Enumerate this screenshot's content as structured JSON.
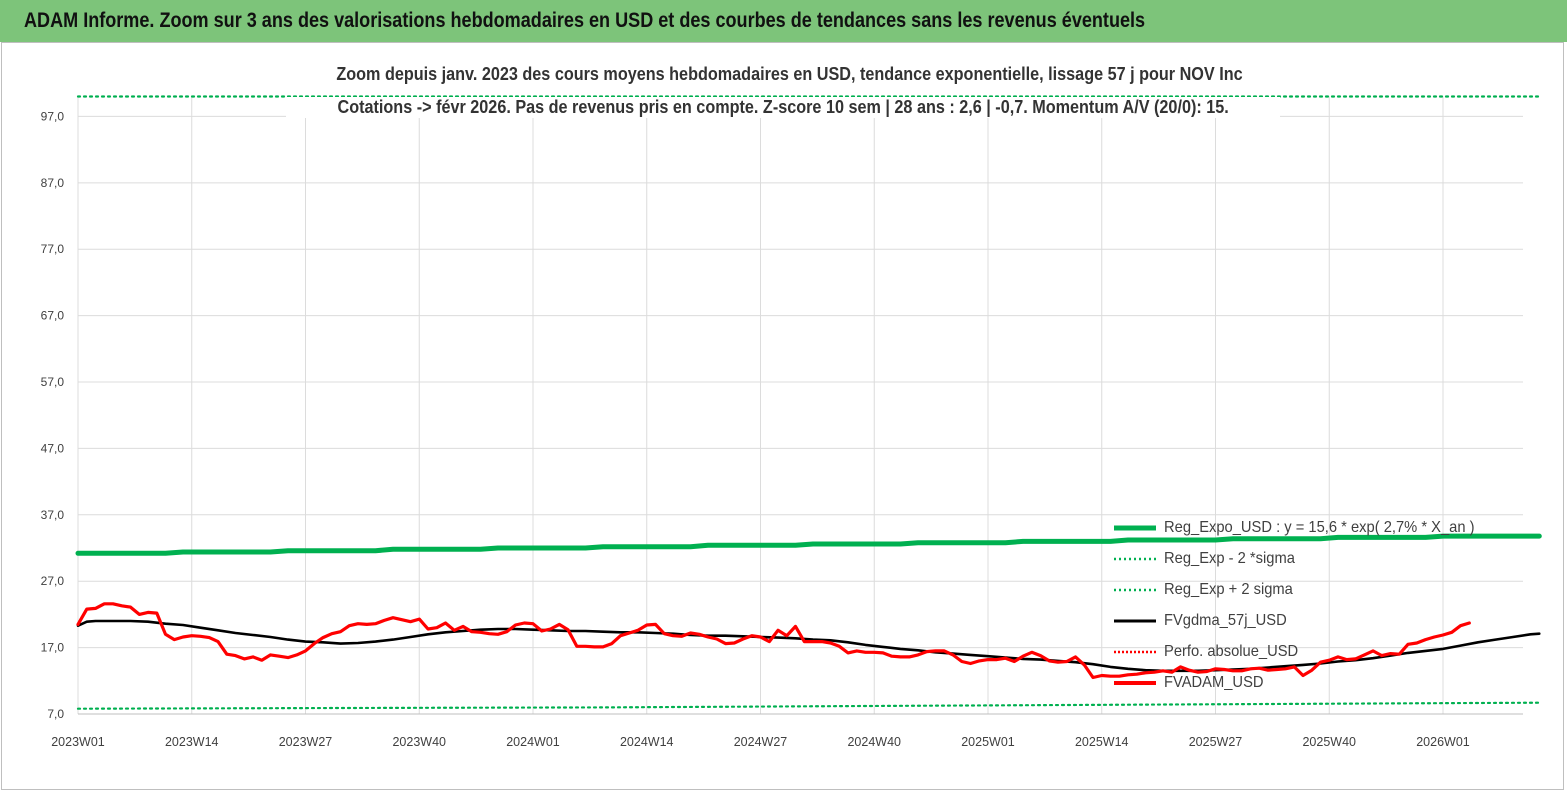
{
  "page": {
    "title": "ADAM Informe. Zoom sur 3 ans des valorisations hebdomadaires en USD et des courbes de tendances sans les revenus éventuels"
  },
  "chart_data": {
    "type": "line",
    "subtitle_line1": "Zoom depuis janv. 2023 des cours moyens hebdomadaires en USD, tendance exponentielle, lissage 57 j pour NOV Inc",
    "subtitle_line2": "Cotations -> févr 2026.  Pas de revenus pris en compte. Z-score 10 sem | 28 ans : 2,6 | -0,7. Momentum A/V (20/0): 15.",
    "ylim": [
      7.0,
      100.0
    ],
    "y_ticks": [
      "7,0",
      "17,0",
      "27,0",
      "37,0",
      "47,0",
      "57,0",
      "67,0",
      "77,0",
      "87,0",
      "97,0"
    ],
    "x_ticks": [
      "2023W01",
      "2023W14",
      "2023W27",
      "2023W40",
      "2024W01",
      "2024W14",
      "2024W27",
      "2024W40",
      "2025W01",
      "2025W14",
      "2025W27",
      "2025W40",
      "2026W01"
    ],
    "x_range_weeks": [
      0,
      167
    ],
    "grid": true,
    "legend_position": "bottom-right",
    "series": [
      {
        "name": "Reg_Expo_USD : y = 15,6 * exp( 2,7% *  X_an )",
        "color": "#00b050",
        "style": "solid-thick",
        "points": [
          [
            0,
            31.2
          ],
          [
            10,
            31.2
          ],
          [
            12,
            31.4
          ],
          [
            22,
            31.4
          ],
          [
            24,
            31.6
          ],
          [
            34,
            31.6
          ],
          [
            36,
            31.8
          ],
          [
            46,
            31.8
          ],
          [
            48,
            32.0
          ],
          [
            58,
            32.0
          ],
          [
            60,
            32.2
          ],
          [
            70,
            32.2
          ],
          [
            72,
            32.4
          ],
          [
            82,
            32.4
          ],
          [
            84,
            32.6
          ],
          [
            94,
            32.6
          ],
          [
            96,
            32.8
          ],
          [
            106,
            32.8
          ],
          [
            108,
            33.0
          ],
          [
            118,
            33.0
          ],
          [
            120,
            33.2
          ],
          [
            130,
            33.2
          ],
          [
            132,
            33.4
          ],
          [
            142,
            33.4
          ],
          [
            144,
            33.6
          ],
          [
            154,
            33.6
          ],
          [
            156,
            33.8
          ],
          [
            167,
            33.8
          ]
        ]
      },
      {
        "name": "Reg_Exp - 2 *sigma",
        "color": "#00b050",
        "style": "dotted",
        "points": [
          [
            0,
            7.8
          ],
          [
            30,
            7.9
          ],
          [
            60,
            8.0
          ],
          [
            90,
            8.2
          ],
          [
            120,
            8.4
          ],
          [
            150,
            8.6
          ],
          [
            167,
            8.7
          ]
        ]
      },
      {
        "name": "Reg_Exp + 2 sigma",
        "color": "#00b050",
        "style": "dotted",
        "points": [
          [
            0,
            100.0
          ],
          [
            167,
            100.0
          ]
        ]
      },
      {
        "name": "FVgdma_57j_USD",
        "color": "#000000",
        "style": "solid",
        "points": [
          [
            0,
            20.3
          ],
          [
            1,
            20.9
          ],
          [
            2,
            21.0
          ],
          [
            4,
            21.0
          ],
          [
            6,
            21.0
          ],
          [
            8,
            20.9
          ],
          [
            10,
            20.6
          ],
          [
            12,
            20.4
          ],
          [
            14,
            20.0
          ],
          [
            16,
            19.6
          ],
          [
            18,
            19.2
          ],
          [
            20,
            18.9
          ],
          [
            22,
            18.6
          ],
          [
            24,
            18.2
          ],
          [
            26,
            17.9
          ],
          [
            28,
            17.8
          ],
          [
            30,
            17.6
          ],
          [
            32,
            17.7
          ],
          [
            34,
            17.9
          ],
          [
            36,
            18.2
          ],
          [
            38,
            18.6
          ],
          [
            40,
            19.0
          ],
          [
            42,
            19.3
          ],
          [
            44,
            19.5
          ],
          [
            46,
            19.7
          ],
          [
            48,
            19.8
          ],
          [
            50,
            19.8
          ],
          [
            52,
            19.7
          ],
          [
            54,
            19.6
          ],
          [
            56,
            19.5
          ],
          [
            58,
            19.5
          ],
          [
            60,
            19.4
          ],
          [
            62,
            19.3
          ],
          [
            64,
            19.3
          ],
          [
            66,
            19.2
          ],
          [
            68,
            19.1
          ],
          [
            70,
            18.9
          ],
          [
            72,
            18.8
          ],
          [
            74,
            18.8
          ],
          [
            76,
            18.7
          ],
          [
            78,
            18.6
          ],
          [
            80,
            18.5
          ],
          [
            82,
            18.4
          ],
          [
            84,
            18.2
          ],
          [
            86,
            18.1
          ],
          [
            88,
            17.8
          ],
          [
            90,
            17.4
          ],
          [
            92,
            17.1
          ],
          [
            94,
            16.8
          ],
          [
            96,
            16.6
          ],
          [
            98,
            16.3
          ],
          [
            100,
            16.1
          ],
          [
            102,
            15.9
          ],
          [
            104,
            15.7
          ],
          [
            106,
            15.5
          ],
          [
            108,
            15.3
          ],
          [
            110,
            15.2
          ],
          [
            112,
            15.0
          ],
          [
            114,
            14.8
          ],
          [
            116,
            14.5
          ],
          [
            118,
            14.1
          ],
          [
            120,
            13.8
          ],
          [
            122,
            13.6
          ],
          [
            124,
            13.5
          ],
          [
            126,
            13.5
          ],
          [
            128,
            13.5
          ],
          [
            130,
            13.6
          ],
          [
            132,
            13.7
          ],
          [
            134,
            13.8
          ],
          [
            136,
            14.0
          ],
          [
            138,
            14.2
          ],
          [
            140,
            14.4
          ],
          [
            142,
            14.6
          ],
          [
            144,
            14.9
          ],
          [
            146,
            15.1
          ],
          [
            148,
            15.4
          ],
          [
            150,
            15.8
          ],
          [
            152,
            16.2
          ],
          [
            154,
            16.5
          ],
          [
            156,
            16.8
          ],
          [
            158,
            17.3
          ],
          [
            160,
            17.8
          ],
          [
            162,
            18.2
          ],
          [
            164,
            18.6
          ],
          [
            166,
            19.0
          ],
          [
            167,
            19.1
          ]
        ]
      },
      {
        "name": "Perfo. absolue_USD",
        "color": "#ff0000",
        "style": "dotted",
        "points": []
      },
      {
        "name": "FVADAM_USD",
        "color": "#ff0000",
        "style": "solid-thick",
        "points": [
          [
            0,
            20.5
          ],
          [
            1,
            22.8
          ],
          [
            2,
            22.9
          ],
          [
            3,
            23.6
          ],
          [
            4,
            23.6
          ],
          [
            5,
            23.3
          ],
          [
            6,
            23.1
          ],
          [
            7,
            22.0
          ],
          [
            8,
            22.3
          ],
          [
            9,
            22.2
          ],
          [
            10,
            19.0
          ],
          [
            11,
            18.2
          ],
          [
            12,
            18.6
          ],
          [
            13,
            18.8
          ],
          [
            14,
            18.7
          ],
          [
            15,
            18.5
          ],
          [
            16,
            17.9
          ],
          [
            17,
            16.0
          ],
          [
            18,
            15.8
          ],
          [
            19,
            15.3
          ],
          [
            20,
            15.6
          ],
          [
            21,
            15.1
          ],
          [
            22,
            15.9
          ],
          [
            23,
            15.7
          ],
          [
            24,
            15.5
          ],
          [
            25,
            15.9
          ],
          [
            26,
            16.5
          ],
          [
            27,
            17.6
          ],
          [
            28,
            18.5
          ],
          [
            29,
            19.1
          ],
          [
            30,
            19.4
          ],
          [
            31,
            20.3
          ],
          [
            32,
            20.6
          ],
          [
            33,
            20.5
          ],
          [
            34,
            20.6
          ],
          [
            35,
            21.1
          ],
          [
            36,
            21.5
          ],
          [
            37,
            21.2
          ],
          [
            38,
            20.9
          ],
          [
            39,
            21.3
          ],
          [
            40,
            19.8
          ],
          [
            41,
            20.0
          ],
          [
            42,
            20.7
          ],
          [
            43,
            19.6
          ],
          [
            44,
            20.2
          ],
          [
            45,
            19.4
          ],
          [
            46,
            19.3
          ],
          [
            47,
            19.1
          ],
          [
            48,
            19.0
          ],
          [
            49,
            19.4
          ],
          [
            50,
            20.4
          ],
          [
            51,
            20.7
          ],
          [
            52,
            20.6
          ],
          [
            53,
            19.5
          ],
          [
            54,
            19.8
          ],
          [
            55,
            20.5
          ],
          [
            56,
            19.7
          ],
          [
            57,
            17.2
          ],
          [
            58,
            17.2
          ],
          [
            59,
            17.1
          ],
          [
            60,
            17.1
          ],
          [
            61,
            17.6
          ],
          [
            62,
            18.8
          ],
          [
            63,
            19.2
          ],
          [
            64,
            19.6
          ],
          [
            65,
            20.4
          ],
          [
            66,
            20.5
          ],
          [
            67,
            19.1
          ],
          [
            68,
            18.8
          ],
          [
            69,
            18.7
          ],
          [
            70,
            19.2
          ],
          [
            71,
            19.0
          ],
          [
            72,
            18.6
          ],
          [
            73,
            18.3
          ],
          [
            74,
            17.6
          ],
          [
            75,
            17.7
          ],
          [
            76,
            18.3
          ],
          [
            77,
            18.8
          ],
          [
            78,
            18.6
          ],
          [
            79,
            17.9
          ],
          [
            80,
            19.6
          ],
          [
            81,
            18.8
          ],
          [
            82,
            20.2
          ],
          [
            83,
            17.9
          ],
          [
            84,
            17.9
          ],
          [
            85,
            17.9
          ],
          [
            86,
            17.7
          ],
          [
            87,
            17.2
          ],
          [
            88,
            16.2
          ],
          [
            89,
            16.5
          ],
          [
            90,
            16.3
          ],
          [
            91,
            16.3
          ],
          [
            92,
            16.2
          ],
          [
            93,
            15.7
          ],
          [
            94,
            15.6
          ],
          [
            95,
            15.6
          ],
          [
            96,
            15.9
          ],
          [
            97,
            16.4
          ],
          [
            98,
            16.5
          ],
          [
            99,
            16.5
          ],
          [
            100,
            15.9
          ],
          [
            101,
            14.9
          ],
          [
            102,
            14.6
          ],
          [
            103,
            15.0
          ],
          [
            104,
            15.2
          ],
          [
            105,
            15.2
          ],
          [
            106,
            15.4
          ],
          [
            107,
            14.9
          ],
          [
            108,
            15.7
          ],
          [
            109,
            16.3
          ],
          [
            110,
            15.8
          ],
          [
            111,
            15.0
          ],
          [
            112,
            14.8
          ],
          [
            113,
            14.9
          ],
          [
            114,
            15.6
          ],
          [
            115,
            14.4
          ],
          [
            116,
            12.5
          ],
          [
            117,
            12.8
          ],
          [
            118,
            12.7
          ],
          [
            119,
            12.7
          ],
          [
            120,
            12.9
          ],
          [
            121,
            13.0
          ],
          [
            122,
            13.2
          ],
          [
            123,
            13.3
          ],
          [
            124,
            13.5
          ],
          [
            125,
            13.3
          ],
          [
            126,
            14.1
          ],
          [
            127,
            13.6
          ],
          [
            128,
            13.3
          ],
          [
            129,
            13.4
          ],
          [
            130,
            13.8
          ],
          [
            131,
            13.7
          ],
          [
            132,
            13.5
          ],
          [
            133,
            13.5
          ],
          [
            134,
            13.8
          ],
          [
            135,
            13.9
          ],
          [
            136,
            13.6
          ],
          [
            137,
            13.7
          ],
          [
            138,
            13.8
          ],
          [
            139,
            14.1
          ],
          [
            140,
            12.8
          ],
          [
            141,
            13.6
          ],
          [
            142,
            14.8
          ],
          [
            143,
            15.1
          ],
          [
            144,
            15.6
          ],
          [
            145,
            15.2
          ],
          [
            146,
            15.3
          ],
          [
            147,
            15.9
          ],
          [
            148,
            16.5
          ],
          [
            149,
            15.8
          ],
          [
            150,
            16.1
          ],
          [
            151,
            16.0
          ],
          [
            152,
            17.5
          ],
          [
            153,
            17.7
          ],
          [
            154,
            18.2
          ],
          [
            155,
            18.6
          ],
          [
            156,
            18.9
          ],
          [
            157,
            19.3
          ],
          [
            158,
            20.3
          ],
          [
            159,
            20.7
          ]
        ]
      }
    ]
  },
  "colors": {
    "banner_bg": "#7dc47a",
    "grid": "#dcdcdc",
    "trend_green": "#00b050",
    "price_red": "#ff0000",
    "smooth_black": "#000000"
  }
}
